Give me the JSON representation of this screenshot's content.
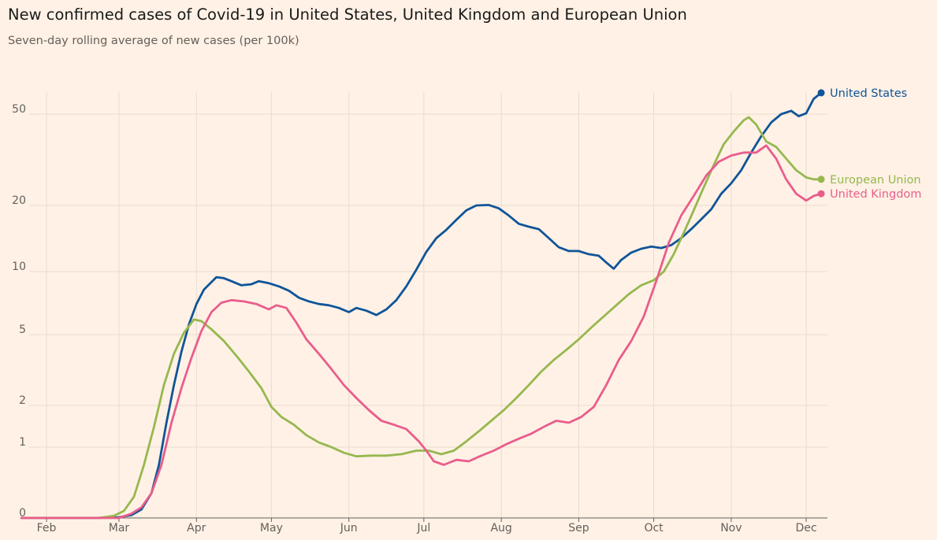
{
  "chart_data": {
    "type": "line",
    "title": "New confirmed cases of Covid-19 in United States, United Kingdom and European Union",
    "subtitle": "Seven-day rolling average of new cases (per 100k)",
    "xlabel": "",
    "ylabel": "",
    "x_scale": "date",
    "y_scale": "symlog",
    "ylim": [
      0,
      80
    ],
    "y_ticks": [
      0,
      1,
      2,
      5,
      10,
      20,
      50
    ],
    "y_tick_labels": [
      "0",
      "1",
      "2",
      "5",
      "10",
      "20",
      "50"
    ],
    "x_range": [
      "2020-01-22",
      "2020-12-07"
    ],
    "x_ticks": [
      "2020-02-01",
      "2020-03-01",
      "2020-04-01",
      "2020-05-01",
      "2020-06-01",
      "2020-07-01",
      "2020-08-01",
      "2020-09-01",
      "2020-10-01",
      "2020-11-01",
      "2020-12-01"
    ],
    "x_tick_labels": [
      "Feb",
      "Mar",
      "Apr",
      "May",
      "Jun",
      "Jul",
      "Aug",
      "Sep",
      "Oct",
      "Nov",
      "Dec"
    ],
    "grid": true,
    "legend": "direct labels at line ends",
    "series": [
      {
        "name": "United States",
        "color": "#0f5499",
        "points": [
          [
            "2020-01-22",
            0
          ],
          [
            "2020-02-20",
            0
          ],
          [
            "2020-03-01",
            0.01
          ],
          [
            "2020-03-06",
            0.04
          ],
          [
            "2020-03-10",
            0.12
          ],
          [
            "2020-03-14",
            0.35
          ],
          [
            "2020-03-17",
            0.75
          ],
          [
            "2020-03-20",
            1.5
          ],
          [
            "2020-03-23",
            2.6
          ],
          [
            "2020-03-26",
            4.0
          ],
          [
            "2020-03-29",
            5.6
          ],
          [
            "2020-04-01",
            7.0
          ],
          [
            "2020-04-04",
            8.2
          ],
          [
            "2020-04-07",
            8.9
          ],
          [
            "2020-04-09",
            9.4
          ],
          [
            "2020-04-12",
            9.3
          ],
          [
            "2020-04-15",
            9.0
          ],
          [
            "2020-04-19",
            8.6
          ],
          [
            "2020-04-23",
            8.7
          ],
          [
            "2020-04-26",
            9.0
          ],
          [
            "2020-04-30",
            8.8
          ],
          [
            "2020-05-04",
            8.5
          ],
          [
            "2020-05-08",
            8.1
          ],
          [
            "2020-05-12",
            7.5
          ],
          [
            "2020-05-16",
            7.2
          ],
          [
            "2020-05-20",
            7.0
          ],
          [
            "2020-05-24",
            6.9
          ],
          [
            "2020-05-28",
            6.7
          ],
          [
            "2020-06-01",
            6.4
          ],
          [
            "2020-06-04",
            6.7
          ],
          [
            "2020-06-08",
            6.5
          ],
          [
            "2020-06-12",
            6.2
          ],
          [
            "2020-06-16",
            6.6
          ],
          [
            "2020-06-20",
            7.3
          ],
          [
            "2020-06-24",
            8.5
          ],
          [
            "2020-06-28",
            10.2
          ],
          [
            "2020-07-02",
            12.3
          ],
          [
            "2020-07-06",
            14.2
          ],
          [
            "2020-07-10",
            15.5
          ],
          [
            "2020-07-14",
            17.2
          ],
          [
            "2020-07-18",
            19.0
          ],
          [
            "2020-07-22",
            20.0
          ],
          [
            "2020-07-27",
            20.1
          ],
          [
            "2020-07-31",
            19.4
          ],
          [
            "2020-08-04",
            18.0
          ],
          [
            "2020-08-08",
            16.5
          ],
          [
            "2020-08-12",
            16.0
          ],
          [
            "2020-08-16",
            15.6
          ],
          [
            "2020-08-20",
            14.2
          ],
          [
            "2020-08-24",
            12.9
          ],
          [
            "2020-08-28",
            12.4
          ],
          [
            "2020-09-01",
            12.4
          ],
          [
            "2020-09-05",
            12.0
          ],
          [
            "2020-09-09",
            11.8
          ],
          [
            "2020-09-12",
            11.0
          ],
          [
            "2020-09-15",
            10.3
          ],
          [
            "2020-09-18",
            11.3
          ],
          [
            "2020-09-22",
            12.2
          ],
          [
            "2020-09-26",
            12.7
          ],
          [
            "2020-09-30",
            13.0
          ],
          [
            "2020-10-04",
            12.8
          ],
          [
            "2020-10-08",
            13.2
          ],
          [
            "2020-10-12",
            14.2
          ],
          [
            "2020-10-16",
            15.6
          ],
          [
            "2020-10-20",
            17.3
          ],
          [
            "2020-10-24",
            19.2
          ],
          [
            "2020-10-28",
            22.5
          ],
          [
            "2020-11-01",
            25.0
          ],
          [
            "2020-11-05",
            28.5
          ],
          [
            "2020-11-09",
            34.0
          ],
          [
            "2020-11-13",
            40.0
          ],
          [
            "2020-11-17",
            46.0
          ],
          [
            "2020-11-21",
            50.0
          ],
          [
            "2020-11-25",
            52.0
          ],
          [
            "2020-11-28",
            49.0
          ],
          [
            "2020-12-01",
            50.5
          ],
          [
            "2020-12-04",
            60.0
          ],
          [
            "2020-12-07",
            64.5
          ]
        ]
      },
      {
        "name": "European Union",
        "color": "#96b84f",
        "points": [
          [
            "2020-01-22",
            0
          ],
          [
            "2020-02-22",
            0
          ],
          [
            "2020-02-28",
            0.03
          ],
          [
            "2020-03-03",
            0.1
          ],
          [
            "2020-03-07",
            0.3
          ],
          [
            "2020-03-11",
            0.75
          ],
          [
            "2020-03-15",
            1.4
          ],
          [
            "2020-03-19",
            2.6
          ],
          [
            "2020-03-23",
            3.9
          ],
          [
            "2020-03-27",
            5.1
          ],
          [
            "2020-03-31",
            5.9
          ],
          [
            "2020-04-03",
            5.8
          ],
          [
            "2020-04-07",
            5.3
          ],
          [
            "2020-04-12",
            4.6
          ],
          [
            "2020-04-17",
            3.8
          ],
          [
            "2020-04-22",
            3.1
          ],
          [
            "2020-04-27",
            2.5
          ],
          [
            "2020-05-01",
            1.95
          ],
          [
            "2020-05-05",
            1.65
          ],
          [
            "2020-05-10",
            1.45
          ],
          [
            "2020-05-15",
            1.22
          ],
          [
            "2020-05-20",
            1.08
          ],
          [
            "2020-05-25",
            1.0
          ],
          [
            "2020-05-30",
            0.92
          ],
          [
            "2020-06-04",
            0.87
          ],
          [
            "2020-06-10",
            0.88
          ],
          [
            "2020-06-16",
            0.88
          ],
          [
            "2020-06-22",
            0.9
          ],
          [
            "2020-06-28",
            0.95
          ],
          [
            "2020-07-03",
            0.95
          ],
          [
            "2020-07-08",
            0.9
          ],
          [
            "2020-07-13",
            0.95
          ],
          [
            "2020-07-18",
            1.1
          ],
          [
            "2020-07-23",
            1.3
          ],
          [
            "2020-07-28",
            1.55
          ],
          [
            "2020-08-02",
            1.85
          ],
          [
            "2020-08-07",
            2.2
          ],
          [
            "2020-08-12",
            2.6
          ],
          [
            "2020-08-17",
            3.1
          ],
          [
            "2020-08-22",
            3.6
          ],
          [
            "2020-08-27",
            4.1
          ],
          [
            "2020-09-01",
            4.7
          ],
          [
            "2020-09-06",
            5.4
          ],
          [
            "2020-09-11",
            6.1
          ],
          [
            "2020-09-16",
            6.9
          ],
          [
            "2020-09-21",
            7.8
          ],
          [
            "2020-09-26",
            8.6
          ],
          [
            "2020-10-01",
            9.1
          ],
          [
            "2020-10-05",
            10.0
          ],
          [
            "2020-10-09",
            12.0
          ],
          [
            "2020-10-13",
            15.0
          ],
          [
            "2020-10-17",
            19.0
          ],
          [
            "2020-10-21",
            24.0
          ],
          [
            "2020-10-25",
            30.0
          ],
          [
            "2020-10-29",
            37.0
          ],
          [
            "2020-11-02",
            42.0
          ],
          [
            "2020-11-06",
            47.0
          ],
          [
            "2020-11-08",
            48.5
          ],
          [
            "2020-11-11",
            45.0
          ],
          [
            "2020-11-15",
            38.0
          ],
          [
            "2020-11-19",
            36.0
          ],
          [
            "2020-11-23",
            32.0
          ],
          [
            "2020-11-27",
            28.5
          ],
          [
            "2020-12-01",
            26.5
          ],
          [
            "2020-12-04",
            26.0
          ],
          [
            "2020-12-07",
            26.0
          ]
        ]
      },
      {
        "name": "United Kingdom",
        "color": "#e95d8c",
        "points": [
          [
            "2020-01-22",
            0
          ],
          [
            "2020-03-01",
            0
          ],
          [
            "2020-03-06",
            0.06
          ],
          [
            "2020-03-10",
            0.15
          ],
          [
            "2020-03-14",
            0.35
          ],
          [
            "2020-03-18",
            0.75
          ],
          [
            "2020-03-22",
            1.5
          ],
          [
            "2020-03-26",
            2.5
          ],
          [
            "2020-03-30",
            3.7
          ],
          [
            "2020-04-03",
            5.2
          ],
          [
            "2020-04-07",
            6.4
          ],
          [
            "2020-04-11",
            7.1
          ],
          [
            "2020-04-15",
            7.3
          ],
          [
            "2020-04-20",
            7.2
          ],
          [
            "2020-04-25",
            7.0
          ],
          [
            "2020-04-30",
            6.6
          ],
          [
            "2020-05-03",
            6.9
          ],
          [
            "2020-05-07",
            6.7
          ],
          [
            "2020-05-11",
            5.7
          ],
          [
            "2020-05-15",
            4.7
          ],
          [
            "2020-05-20",
            3.9
          ],
          [
            "2020-05-25",
            3.2
          ],
          [
            "2020-05-30",
            2.6
          ],
          [
            "2020-06-04",
            2.2
          ],
          [
            "2020-06-09",
            1.85
          ],
          [
            "2020-06-14",
            1.55
          ],
          [
            "2020-06-19",
            1.45
          ],
          [
            "2020-06-24",
            1.35
          ],
          [
            "2020-06-29",
            1.1
          ],
          [
            "2020-07-02",
            0.95
          ],
          [
            "2020-07-05",
            0.8
          ],
          [
            "2020-07-09",
            0.75
          ],
          [
            "2020-07-14",
            0.82
          ],
          [
            "2020-07-19",
            0.8
          ],
          [
            "2020-07-24",
            0.88
          ],
          [
            "2020-07-29",
            0.95
          ],
          [
            "2020-08-03",
            1.05
          ],
          [
            "2020-08-08",
            1.15
          ],
          [
            "2020-08-13",
            1.25
          ],
          [
            "2020-08-18",
            1.4
          ],
          [
            "2020-08-23",
            1.55
          ],
          [
            "2020-08-28",
            1.5
          ],
          [
            "2020-09-02",
            1.65
          ],
          [
            "2020-09-07",
            1.95
          ],
          [
            "2020-09-12",
            2.6
          ],
          [
            "2020-09-17",
            3.6
          ],
          [
            "2020-09-22",
            4.6
          ],
          [
            "2020-09-27",
            6.1
          ],
          [
            "2020-10-02",
            9.0
          ],
          [
            "2020-10-07",
            13.5
          ],
          [
            "2020-10-12",
            18.0
          ],
          [
            "2020-10-17",
            22.0
          ],
          [
            "2020-10-22",
            27.0
          ],
          [
            "2020-10-27",
            31.0
          ],
          [
            "2020-11-01",
            33.0
          ],
          [
            "2020-11-06",
            34.0
          ],
          [
            "2020-11-11",
            34.0
          ],
          [
            "2020-11-15",
            36.5
          ],
          [
            "2020-11-19",
            32.0
          ],
          [
            "2020-11-23",
            26.0
          ],
          [
            "2020-11-27",
            22.5
          ],
          [
            "2020-12-01",
            21.0
          ],
          [
            "2020-12-04",
            22.0
          ],
          [
            "2020-12-07",
            22.5
          ]
        ]
      }
    ]
  }
}
